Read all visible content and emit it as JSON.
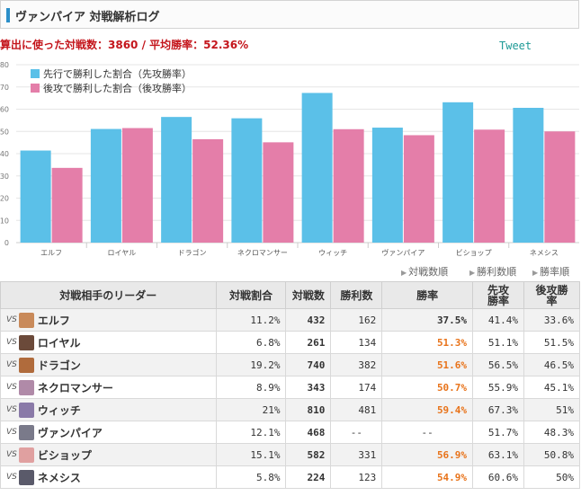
{
  "header": {
    "title": "ヴァンパイア 対戦解析ログ"
  },
  "summary": {
    "text": "算出に使った対戦数：3860 / 平均勝率：52.36%"
  },
  "tweet": {
    "label": "Tweet"
  },
  "colors": {
    "series1": "#5bc0e8",
    "series2": "#e47ea9",
    "accent": "#2c8fc9",
    "win_rate_high": "#e8731a"
  },
  "chart_data": {
    "type": "bar",
    "categories": [
      "エルフ",
      "ロイヤル",
      "ドラゴン",
      "ネクロマンサー",
      "ウィッチ",
      "ヴァンパイア",
      "ビショップ",
      "ネメシス"
    ],
    "series": [
      {
        "name": "先行で勝利した割合（先攻勝率）",
        "values": [
          41.4,
          51.1,
          56.5,
          55.9,
          67.3,
          51.7,
          63.1,
          60.6
        ]
      },
      {
        "name": "後攻で勝利した割合（後攻勝率）",
        "values": [
          33.6,
          51.5,
          46.5,
          45.1,
          51,
          48.3,
          50.8,
          50
        ]
      }
    ],
    "ylim": [
      0,
      80
    ],
    "yticks": [
      0,
      10,
      20,
      30,
      40,
      50,
      60,
      70,
      80
    ],
    "grid": true,
    "legend_position": "top-left"
  },
  "sort_links": [
    "対戦数順",
    "勝利数順",
    "勝率順"
  ],
  "table": {
    "headers": [
      "対戦相手のリーダー",
      "対戦割合",
      "対戦数",
      "勝利数",
      "勝率",
      "先攻勝率",
      "後攻勝率"
    ],
    "vs_label": "VS",
    "rows": [
      {
        "leader": "エルフ",
        "avatar_color": "#c98a5a",
        "ratio": "11.2%",
        "games": "432",
        "wins": "162",
        "rate": "37.5%",
        "rate_style": "dark",
        "first": "41.4%",
        "second": "33.6%"
      },
      {
        "leader": "ロイヤル",
        "avatar_color": "#6b4a3a",
        "ratio": "6.8%",
        "games": "261",
        "wins": "134",
        "rate": "51.3%",
        "rate_style": "orange",
        "first": "51.1%",
        "second": "51.5%"
      },
      {
        "leader": "ドラゴン",
        "avatar_color": "#b06b3c",
        "ratio": "19.2%",
        "games": "740",
        "wins": "382",
        "rate": "51.6%",
        "rate_style": "orange",
        "first": "56.5%",
        "second": "46.5%"
      },
      {
        "leader": "ネクロマンサー",
        "avatar_color": "#b08aa8",
        "ratio": "8.9%",
        "games": "343",
        "wins": "174",
        "rate": "50.7%",
        "rate_style": "orange",
        "first": "55.9%",
        "second": "45.1%"
      },
      {
        "leader": "ウィッチ",
        "avatar_color": "#8a7aa8",
        "ratio": "21%",
        "games": "810",
        "wins": "481",
        "rate": "59.4%",
        "rate_style": "orange",
        "first": "67.3%",
        "second": "51%"
      },
      {
        "leader": "ヴァンパイア",
        "avatar_color": "#7a7a8a",
        "ratio": "12.1%",
        "games": "468",
        "wins": "--",
        "rate": "--",
        "rate_style": "dark",
        "first": "51.7%",
        "second": "48.3%"
      },
      {
        "leader": "ビショップ",
        "avatar_color": "#e0a0a0",
        "ratio": "15.1%",
        "games": "582",
        "wins": "331",
        "rate": "56.9%",
        "rate_style": "orange",
        "first": "63.1%",
        "second": "50.8%"
      },
      {
        "leader": "ネメシス",
        "avatar_color": "#5a5a6a",
        "ratio": "5.8%",
        "games": "224",
        "wins": "123",
        "rate": "54.9%",
        "rate_style": "orange",
        "first": "60.6%",
        "second": "50%"
      }
    ]
  }
}
